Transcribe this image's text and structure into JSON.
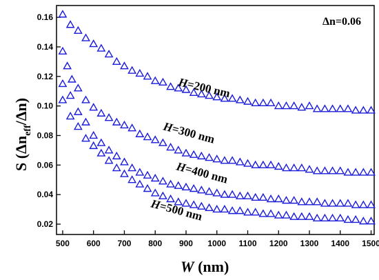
{
  "chart_data": {
    "type": "scatter",
    "title": "",
    "xlabel_var": "W",
    "xlabel_unit": "(nm)",
    "ylabel_main": "S (Δn",
    "ylabel_sub": "eff",
    "ylabel_tail": "/Δn)",
    "xlim": [
      480,
      1510
    ],
    "ylim": [
      0.013,
      0.168
    ],
    "xticks": [
      500,
      600,
      700,
      800,
      900,
      1000,
      1100,
      1200,
      1300,
      1400,
      1500
    ],
    "yticks": [
      0.02,
      0.04,
      0.06,
      0.08,
      0.1,
      0.12,
      0.14,
      0.16
    ],
    "ytick_labels": [
      "0.02",
      "0.04",
      "0.06",
      "0.08",
      "0.10",
      "0.12",
      "0.14",
      "0.16"
    ],
    "grid": false,
    "marker": "open-triangle",
    "color": "#1a1adb",
    "legend_text": "Δn=0.06",
    "series": [
      {
        "label_var": "H",
        "label_rest": "=200 nm",
        "x": [
          500,
          525,
          550,
          575,
          600,
          625,
          650,
          675,
          700,
          725,
          750,
          775,
          800,
          825,
          850,
          875,
          900,
          925,
          950,
          975,
          1000,
          1025,
          1050,
          1075,
          1100,
          1125,
          1150,
          1175,
          1200,
          1225,
          1250,
          1275,
          1300,
          1325,
          1350,
          1375,
          1400,
          1425,
          1450,
          1475,
          1500
        ],
        "y": [
          0.162,
          0.155,
          0.151,
          0.146,
          0.142,
          0.139,
          0.135,
          0.13,
          0.127,
          0.124,
          0.122,
          0.12,
          0.117,
          0.116,
          0.113,
          0.112,
          0.111,
          0.109,
          0.108,
          0.107,
          0.106,
          0.105,
          0.105,
          0.104,
          0.103,
          0.102,
          0.102,
          0.102,
          0.1,
          0.1,
          0.1,
          0.099,
          0.1,
          0.098,
          0.098,
          0.098,
          0.098,
          0.098,
          0.097,
          0.097,
          0.097
        ]
      },
      {
        "label_var": "H",
        "label_rest": "=300 nm",
        "x": [
          500,
          515,
          530,
          550,
          575,
          600,
          625,
          650,
          675,
          700,
          725,
          750,
          775,
          800,
          825,
          850,
          875,
          900,
          925,
          950,
          975,
          1000,
          1025,
          1050,
          1075,
          1100,
          1125,
          1150,
          1175,
          1200,
          1225,
          1250,
          1275,
          1300,
          1325,
          1350,
          1375,
          1400,
          1425,
          1450,
          1475,
          1500
        ],
        "y": [
          0.137,
          0.127,
          0.118,
          0.112,
          0.104,
          0.099,
          0.095,
          0.092,
          0.089,
          0.087,
          0.085,
          0.081,
          0.079,
          0.077,
          0.075,
          0.072,
          0.07,
          0.068,
          0.067,
          0.066,
          0.065,
          0.064,
          0.063,
          0.063,
          0.062,
          0.061,
          0.06,
          0.06,
          0.06,
          0.059,
          0.058,
          0.058,
          0.058,
          0.057,
          0.056,
          0.056,
          0.056,
          0.056,
          0.055,
          0.055,
          0.055,
          0.055
        ]
      },
      {
        "label_var": "H",
        "label_rest": "=400 nm",
        "x": [
          500,
          525,
          550,
          575,
          600,
          625,
          650,
          675,
          700,
          725,
          750,
          775,
          800,
          825,
          850,
          875,
          900,
          925,
          950,
          975,
          1000,
          1025,
          1050,
          1075,
          1100,
          1125,
          1150,
          1175,
          1200,
          1225,
          1250,
          1275,
          1300,
          1325,
          1350,
          1375,
          1400,
          1425,
          1450,
          1475,
          1500
        ],
        "y": [
          0.115,
          0.107,
          0.096,
          0.089,
          0.08,
          0.075,
          0.07,
          0.066,
          0.062,
          0.058,
          0.055,
          0.053,
          0.051,
          0.049,
          0.047,
          0.046,
          0.045,
          0.044,
          0.043,
          0.042,
          0.041,
          0.04,
          0.04,
          0.039,
          0.039,
          0.038,
          0.038,
          0.037,
          0.037,
          0.036,
          0.036,
          0.035,
          0.035,
          0.035,
          0.034,
          0.034,
          0.034,
          0.034,
          0.033,
          0.033,
          0.033
        ]
      },
      {
        "label_var": "H",
        "label_rest": "=500 nm",
        "x": [
          500,
          525,
          550,
          575,
          600,
          625,
          650,
          675,
          700,
          725,
          750,
          775,
          800,
          825,
          850,
          875,
          900,
          925,
          950,
          975,
          1000,
          1025,
          1050,
          1075,
          1100,
          1125,
          1150,
          1175,
          1200,
          1225,
          1250,
          1275,
          1300,
          1325,
          1350,
          1375,
          1400,
          1425,
          1450,
          1475,
          1500
        ],
        "y": [
          0.104,
          0.093,
          0.086,
          0.078,
          0.073,
          0.068,
          0.063,
          0.058,
          0.054,
          0.05,
          0.047,
          0.044,
          0.041,
          0.039,
          0.037,
          0.035,
          0.034,
          0.033,
          0.032,
          0.031,
          0.03,
          0.03,
          0.029,
          0.029,
          0.028,
          0.028,
          0.027,
          0.027,
          0.026,
          0.026,
          0.025,
          0.025,
          0.025,
          0.024,
          0.024,
          0.024,
          0.024,
          0.023,
          0.023,
          0.022,
          0.022
        ]
      }
    ]
  }
}
